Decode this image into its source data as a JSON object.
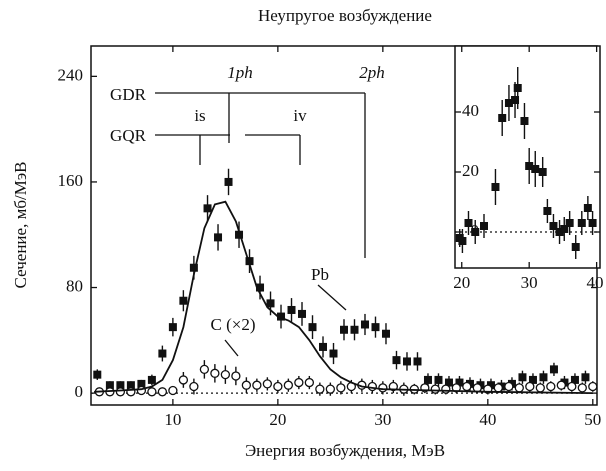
{
  "chart_data": [
    {
      "type": "scatter",
      "title": "Неупругое возбуждение",
      "x_label": "Энергия возбуждения, МэВ",
      "y_label": "Сечение, мб/МэВ",
      "annotations": [
        "1ph",
        "2ph",
        "GDR",
        "GQR",
        "is",
        "iv"
      ],
      "xlim": [
        2.2,
        50.4
      ],
      "xticks": [
        10,
        20,
        30,
        40,
        50
      ],
      "ylim": [
        -9,
        263
      ],
      "yticks": [
        0,
        80,
        160,
        240
      ],
      "series": [
        {
          "name": "Pb",
          "marker": "square",
          "color": "#111",
          "x": [
            2.8,
            4,
            5,
            6,
            7,
            8,
            9,
            10,
            11,
            12,
            13.3,
            14.3,
            15.3,
            16.3,
            17.3,
            18.3,
            19.3,
            20.3,
            21.3,
            22.3,
            23.3,
            24.3,
            25.3,
            26.3,
            27.3,
            28.3,
            29.3,
            30.3,
            31.3,
            32.3,
            33.3,
            34.3,
            35.3,
            36.3,
            37.3,
            38.3,
            39.3,
            40.3,
            41.3,
            42.3,
            43.3,
            44.3,
            45.3,
            46.3,
            47.3,
            48.3,
            49.3
          ],
          "values": [
            14,
            6,
            6,
            6,
            7,
            10,
            30,
            50,
            70,
            95,
            140,
            118,
            160,
            120,
            100,
            80,
            68,
            58,
            63,
            60,
            50,
            35,
            30,
            48,
            48,
            52,
            50,
            45,
            25,
            24,
            24,
            10,
            10,
            8,
            8,
            7,
            6,
            6,
            5,
            7,
            12,
            10,
            12,
            18,
            8,
            10,
            12
          ],
          "errors": [
            4,
            3,
            3,
            3,
            3,
            4,
            6,
            7,
            8,
            9,
            10,
            10,
            10,
            10,
            9,
            9,
            9,
            9,
            9,
            9,
            9,
            8,
            8,
            8,
            8,
            8,
            8,
            8,
            7,
            7,
            7,
            5,
            5,
            5,
            5,
            5,
            5,
            5,
            5,
            5,
            5,
            5,
            5,
            5,
            5,
            5,
            5
          ]
        },
        {
          "name": "C (×2)",
          "marker": "circle",
          "color": "#111",
          "x": [
            3,
            4,
            5,
            6,
            7,
            8,
            9,
            10,
            11,
            12,
            13,
            14,
            15,
            16,
            17,
            18,
            19,
            20,
            21,
            22,
            23,
            24,
            25,
            26,
            27,
            28,
            29,
            30,
            31,
            32,
            33,
            34,
            35,
            36,
            37,
            38,
            39,
            40,
            41,
            42,
            43,
            44,
            45,
            46,
            47,
            48,
            49,
            50
          ],
          "values": [
            1,
            1,
            1,
            1,
            2,
            1,
            1,
            2,
            10,
            5,
            18,
            15,
            14,
            13,
            6,
            6,
            7,
            5,
            6,
            8,
            8,
            3,
            3,
            4,
            5,
            6,
            5,
            4,
            5,
            3,
            3,
            4,
            3,
            3,
            4,
            5,
            4,
            3,
            4,
            5,
            4,
            5,
            4,
            5,
            6,
            5,
            4,
            5
          ],
          "errors": [
            3,
            3,
            3,
            3,
            3,
            3,
            3,
            3,
            6,
            6,
            7,
            7,
            7,
            7,
            6,
            5,
            5,
            5,
            5,
            5,
            5,
            5,
            5,
            5,
            5,
            5,
            5,
            5,
            5,
            5,
            4,
            4,
            4,
            4,
            4,
            4,
            4,
            4,
            4,
            4,
            4,
            4,
            4,
            4,
            4,
            4,
            4,
            4
          ]
        },
        {
          "marker": "line",
          "color": "#111",
          "x": [
            2.5,
            5,
            7,
            8,
            9,
            10,
            11,
            12,
            13,
            14,
            15,
            16,
            17,
            18,
            19,
            20,
            21,
            22,
            23,
            24,
            25,
            26,
            27,
            28,
            30,
            35,
            40,
            50
          ],
          "values": [
            1,
            2,
            3,
            5,
            10,
            25,
            50,
            90,
            125,
            143,
            145,
            130,
            105,
            80,
            65,
            58,
            55,
            50,
            40,
            28,
            18,
            12,
            8,
            5,
            3,
            2,
            1,
            0
          ]
        }
      ]
    },
    {
      "type": "scatter",
      "xlim": [
        19,
        40.5
      ],
      "xticks": [
        20,
        30,
        40
      ],
      "ylim": [
        -12,
        62
      ],
      "yticks": [
        0,
        20,
        40
      ],
      "series": [
        {
          "marker": "square",
          "color": "#111",
          "x": [
            19.7,
            20.1,
            21,
            22,
            23.3,
            25,
            26,
            27,
            27.9,
            28.3,
            29.3,
            30,
            30.9,
            32,
            32.7,
            33.6,
            34.5,
            35.2,
            36,
            36.9,
            37.8,
            38.7,
            39.4
          ],
          "values": [
            -2,
            -3,
            3,
            0,
            2,
            15,
            38,
            43,
            44,
            48,
            37,
            22,
            21,
            20,
            7,
            2,
            0,
            1,
            3,
            -5,
            3,
            8,
            3
          ],
          "errors": [
            3,
            4,
            4,
            4,
            4,
            6,
            6,
            6,
            6,
            7,
            6,
            6,
            6,
            5,
            4,
            4,
            4,
            4,
            4,
            4,
            4,
            4,
            4
          ]
        }
      ]
    }
  ]
}
